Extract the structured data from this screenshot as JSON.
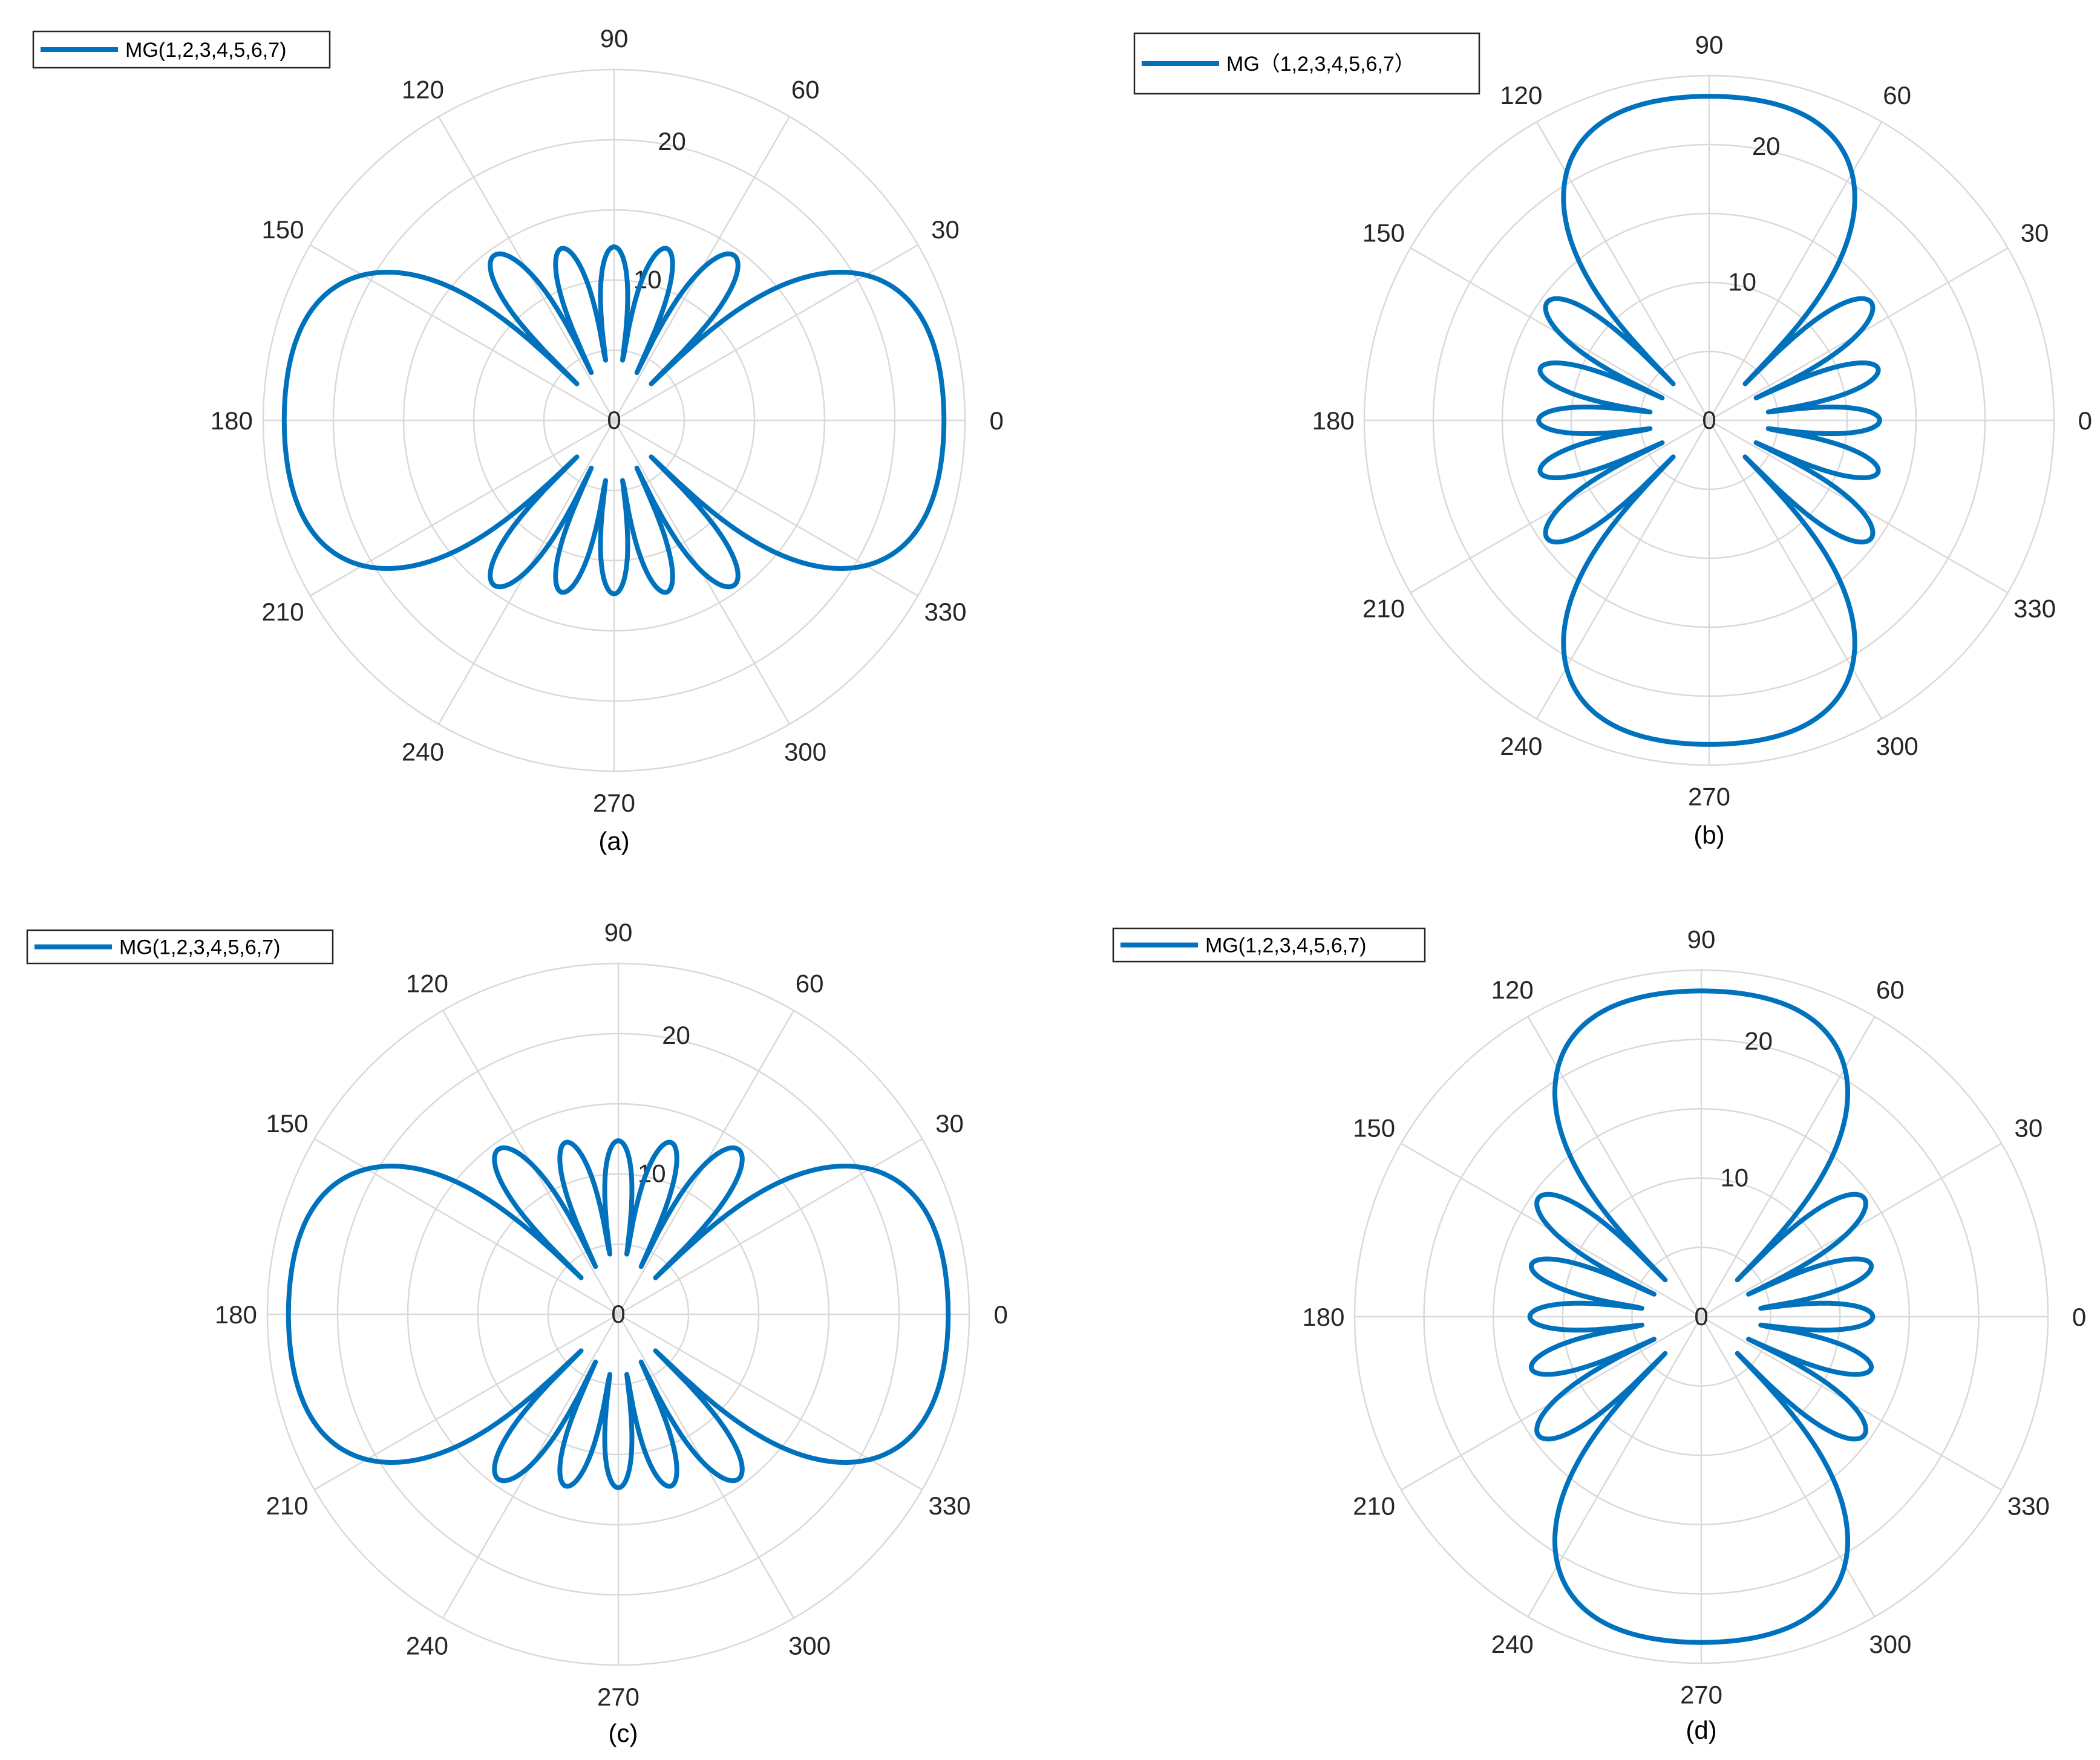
{
  "chart_data": [
    {
      "type": "polar-line",
      "caption": "(a)",
      "legend": "MG(1,2,3,4,5,6,7)",
      "legend_placement": "top-left",
      "rlim": [
        0,
        25
      ],
      "r_ticks": [
        "10",
        "20"
      ],
      "r_tick_values": [
        10,
        20
      ],
      "theta_ticks": [
        "0",
        "30",
        "60",
        "90",
        "120",
        "150",
        "180",
        "210",
        "240",
        "270",
        "300",
        "330"
      ],
      "grid": true,
      "series": [
        {
          "name": "MG(1,2,3,4,5,6,7)",
          "main_lobe_direction_deg": 0,
          "peak": 23.5
        }
      ]
    },
    {
      "type": "polar-line",
      "caption": "(b)",
      "legend": "MG（1,2,3,4,5,6,7）",
      "legend_placement": "top-left",
      "rlim": [
        0,
        25
      ],
      "r_ticks": [
        "10",
        "20"
      ],
      "r_tick_values": [
        10,
        20
      ],
      "theta_ticks": [
        "0",
        "30",
        "60",
        "90",
        "120",
        "150",
        "180",
        "210",
        "240",
        "270",
        "300",
        "330"
      ],
      "grid": true,
      "series": [
        {
          "name": "MG（1,2,3,4,5,6,7）",
          "main_lobe_direction_deg": 90,
          "peak": 23.5
        }
      ]
    },
    {
      "type": "polar-line",
      "caption": "(c)",
      "legend": "MG(1,2,3,4,5,6,7)",
      "legend_placement": "top-left",
      "rlim": [
        0,
        25
      ],
      "r_ticks": [
        "10",
        "20"
      ],
      "r_tick_values": [
        10,
        20
      ],
      "theta_ticks": [
        "0",
        "30",
        "60",
        "90",
        "120",
        "150",
        "180",
        "210",
        "240",
        "270",
        "300",
        "330"
      ],
      "grid": true,
      "series": [
        {
          "name": "MG(1,2,3,4,5,6,7)",
          "main_lobe_direction_deg": 180,
          "peak": 23.5
        }
      ]
    },
    {
      "type": "polar-line",
      "caption": "(d)",
      "legend": "MG(1,2,3,4,5,6,7)",
      "legend_placement": "top-left",
      "rlim": [
        0,
        25
      ],
      "r_ticks": [
        "10",
        "20"
      ],
      "r_tick_values": [
        10,
        20
      ],
      "theta_ticks": [
        "0",
        "30",
        "60",
        "90",
        "120",
        "150",
        "180",
        "210",
        "240",
        "270",
        "300",
        "330"
      ],
      "grid": true,
      "series": [
        {
          "name": "MG(1,2,3,4,5,6,7)",
          "main_lobe_direction_deg": 270,
          "peak": 23.5
        }
      ]
    }
  ],
  "colors": {
    "series": "#0072bd",
    "grid": "#d9d9d9",
    "text": "#262626"
  }
}
